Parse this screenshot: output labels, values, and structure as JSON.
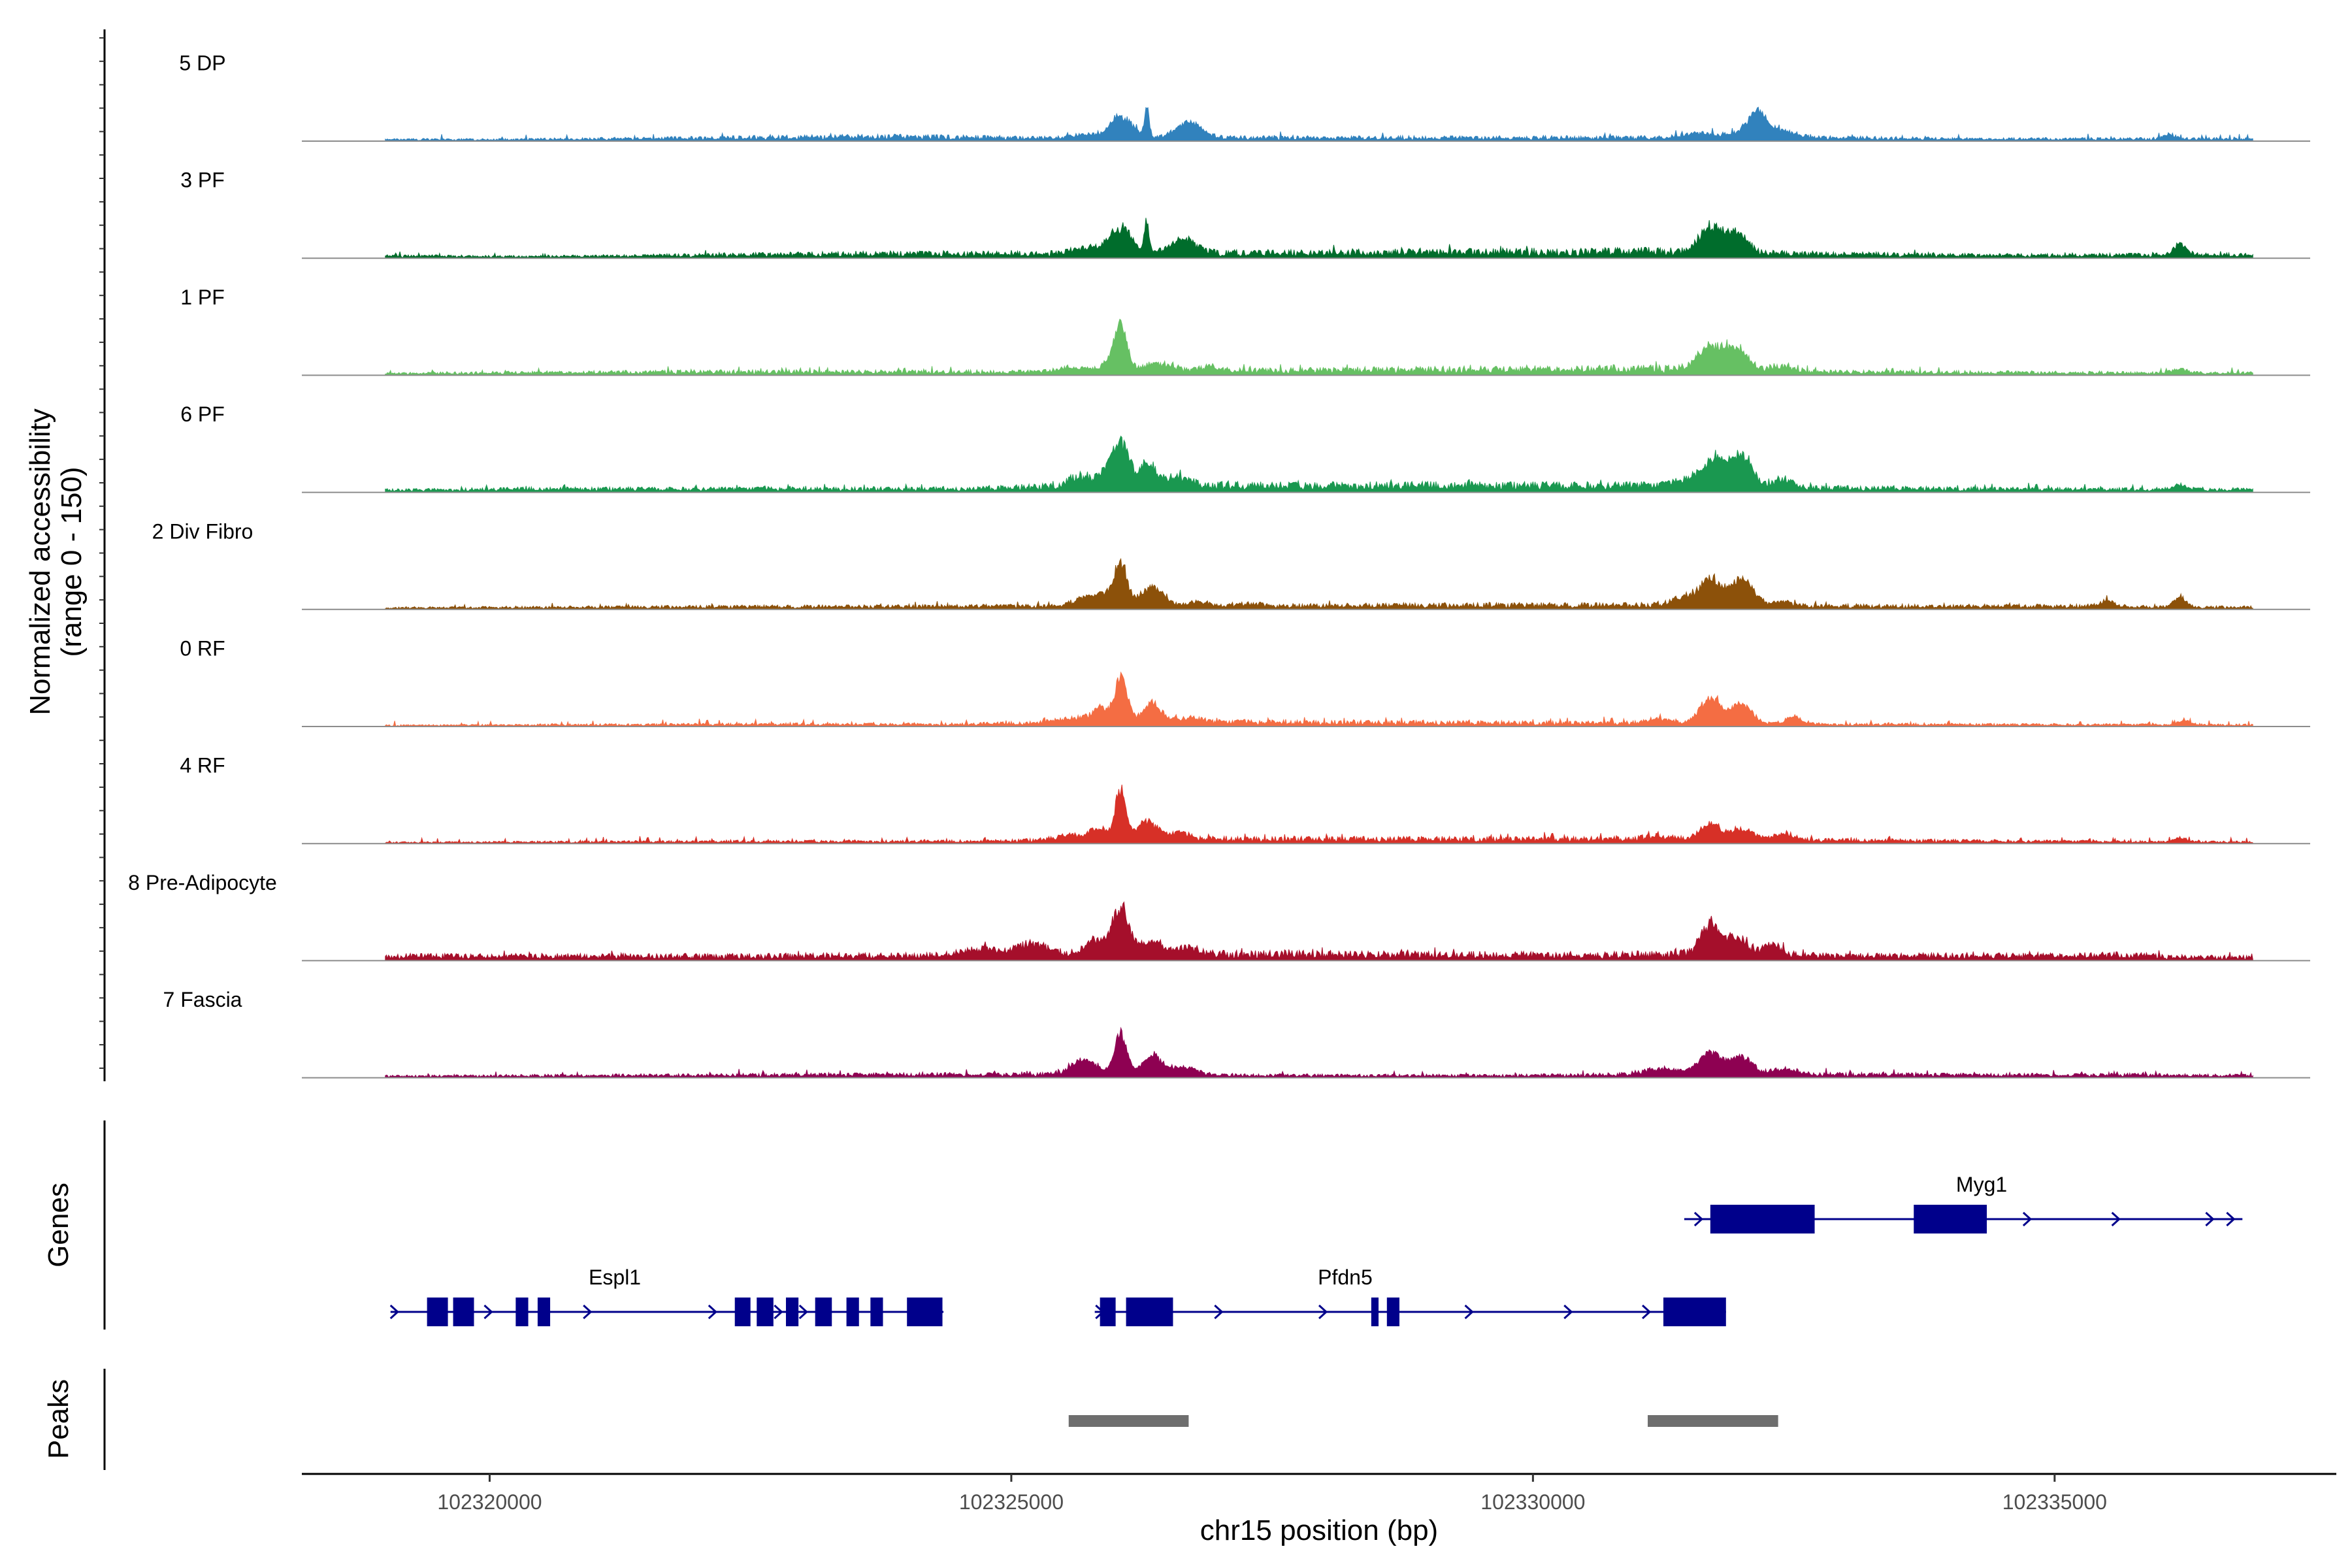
{
  "chart_data": {
    "type": "area",
    "title": "",
    "xlabel": "chr15 position (bp)",
    "ylabel": "Normalized accessibility",
    "ylabel_range": "(range 0 - 150)",
    "y_range": [
      0,
      150
    ],
    "x_range": [
      102318200,
      102337700
    ],
    "x_ticks": [
      102320000,
      102325000,
      102330000,
      102335000
    ],
    "x_tick_labels": [
      "102320000",
      "102325000",
      "102330000",
      "102335000"
    ],
    "peak_positions": [
      102326100,
      102326500,
      102331700,
      102332000
    ],
    "tracks": [
      {
        "name": "5 DP",
        "color": "#3182bd",
        "baseline": [
          [
            102319000,
            3
          ],
          [
            102320200,
            3
          ],
          [
            102323700,
            8
          ],
          [
            102325200,
            6
          ],
          [
            102331100,
            6
          ],
          [
            102332800,
            6
          ],
          [
            102334200,
            4
          ],
          [
            102336300,
            4
          ]
        ],
        "peaks": [
          [
            102325700,
            6,
            120
          ],
          [
            102326050,
            40,
            100
          ],
          [
            102326300,
            55,
            22
          ],
          [
            102326700,
            30,
            120
          ],
          [
            102331600,
            8,
            150
          ],
          [
            102331950,
            6,
            130
          ],
          [
            102332150,
            45,
            90
          ],
          [
            102332400,
            12,
            120
          ],
          [
            102336100,
            8,
            60
          ]
        ]
      },
      {
        "name": "3 PF",
        "color": "#006d2c",
        "baseline": [
          [
            102319000,
            4
          ],
          [
            102320400,
            3
          ],
          [
            102323700,
            8
          ],
          [
            102325200,
            8
          ],
          [
            102331100,
            12
          ],
          [
            102332700,
            8
          ],
          [
            102334300,
            5
          ],
          [
            102336200,
            6
          ]
        ],
        "peaks": [
          [
            102325700,
            10,
            130
          ],
          [
            102326050,
            45,
            110
          ],
          [
            102326300,
            58,
            20
          ],
          [
            102326650,
            26,
            120
          ],
          [
            102331700,
            45,
            110
          ],
          [
            102331950,
            35,
            100
          ],
          [
            102336200,
            20,
            60
          ]
        ]
      },
      {
        "name": "1 PF",
        "color": "#66c063",
        "baseline": [
          [
            102319000,
            3
          ],
          [
            102320500,
            5
          ],
          [
            102322000,
            6
          ],
          [
            102325300,
            6
          ],
          [
            102331000,
            12
          ],
          [
            102332900,
            6
          ],
          [
            102336100,
            4
          ]
        ],
        "peaks": [
          [
            102325600,
            8,
            160
          ],
          [
            102325950,
            15,
            80
          ],
          [
            102326050,
            78,
            60
          ],
          [
            102326400,
            15,
            130
          ],
          [
            102326900,
            8,
            100
          ],
          [
            102331700,
            40,
            120
          ],
          [
            102331950,
            38,
            110
          ],
          [
            102332400,
            8,
            100
          ],
          [
            102336200,
            7,
            70
          ]
        ]
      },
      {
        "name": "6 PF",
        "color": "#1a9850",
        "baseline": [
          [
            102319200,
            4
          ],
          [
            102320400,
            6
          ],
          [
            102322500,
            6
          ],
          [
            102324600,
            6
          ],
          [
            102325600,
            12
          ],
          [
            102331000,
            12
          ],
          [
            102332600,
            8
          ],
          [
            102334300,
            6
          ],
          [
            102336000,
            5
          ]
        ],
        "peaks": [
          [
            102325650,
            15,
            110
          ],
          [
            102325950,
            30,
            100
          ],
          [
            102326050,
            62,
            70
          ],
          [
            102326300,
            38,
            90
          ],
          [
            102326600,
            15,
            110
          ],
          [
            102331500,
            14,
            120
          ],
          [
            102331750,
            50,
            100
          ],
          [
            102332000,
            55,
            100
          ],
          [
            102332400,
            15,
            90
          ],
          [
            102336200,
            8,
            70
          ]
        ]
      },
      {
        "name": "2 Div Fibro",
        "color": "#8c510a",
        "baseline": [
          [
            102319200,
            3
          ],
          [
            102320800,
            4
          ],
          [
            102322800,
            5
          ],
          [
            102325800,
            6
          ],
          [
            102331100,
            8
          ],
          [
            102332800,
            6
          ],
          [
            102335300,
            6
          ],
          [
            102336100,
            4
          ]
        ],
        "peaks": [
          [
            102325700,
            15,
            110
          ],
          [
            102325900,
            20,
            90
          ],
          [
            102326050,
            72,
            60
          ],
          [
            102326350,
            35,
            110
          ],
          [
            102326800,
            8,
            90
          ],
          [
            102327300,
            5,
            80
          ],
          [
            102331450,
            14,
            110
          ],
          [
            102331700,
            45,
            100
          ],
          [
            102332000,
            48,
            110
          ],
          [
            102332400,
            6,
            90
          ],
          [
            102335500,
            10,
            70
          ],
          [
            102336200,
            16,
            60
          ]
        ]
      },
      {
        "name": "0 RF",
        "color": "#f46d43",
        "baseline": [
          [
            102319000,
            2
          ],
          [
            102320800,
            3
          ],
          [
            102322500,
            4
          ],
          [
            102324500,
            4
          ],
          [
            102325800,
            8
          ],
          [
            102331000,
            6
          ],
          [
            102332800,
            4
          ],
          [
            102336100,
            3
          ]
        ],
        "peaks": [
          [
            102325600,
            8,
            150
          ],
          [
            102325850,
            25,
            70
          ],
          [
            102326050,
            78,
            60
          ],
          [
            102326350,
            35,
            90
          ],
          [
            102326700,
            8,
            120
          ],
          [
            102331200,
            8,
            110
          ],
          [
            102331700,
            45,
            100
          ],
          [
            102332000,
            35,
            100
          ],
          [
            102332500,
            15,
            70
          ],
          [
            102336250,
            8,
            60
          ]
        ]
      },
      {
        "name": "4 RF",
        "color": "#d73027",
        "baseline": [
          [
            102319000,
            2
          ],
          [
            102320600,
            3
          ],
          [
            102323000,
            4
          ],
          [
            102324700,
            4
          ],
          [
            102325800,
            8
          ],
          [
            102331200,
            8
          ],
          [
            102332800,
            6
          ],
          [
            102335000,
            4
          ],
          [
            102336000,
            3
          ]
        ],
        "peaks": [
          [
            102325600,
            8,
            150
          ],
          [
            102325850,
            18,
            80
          ],
          [
            102326050,
            90,
            50
          ],
          [
            102326300,
            32,
            90
          ],
          [
            102326600,
            10,
            110
          ],
          [
            102331200,
            6,
            120
          ],
          [
            102331700,
            26,
            100
          ],
          [
            102332000,
            20,
            100
          ],
          [
            102332400,
            12,
            100
          ],
          [
            102336200,
            7,
            70
          ]
        ]
      },
      {
        "name": "8 Pre-Adipocyte",
        "color": "#a50f2b",
        "baseline": [
          [
            102319300,
            8
          ],
          [
            102320300,
            8
          ],
          [
            102322400,
            8
          ],
          [
            102324600,
            10
          ],
          [
            102325300,
            12
          ],
          [
            102330800,
            10
          ],
          [
            102331300,
            12
          ],
          [
            102332500,
            10
          ],
          [
            102333000,
            8
          ],
          [
            102335800,
            10
          ],
          [
            102336100,
            6
          ]
        ],
        "peaks": [
          [
            102324700,
            12,
            150
          ],
          [
            102325200,
            18,
            140
          ],
          [
            102325800,
            26,
            100
          ],
          [
            102326050,
            80,
            80
          ],
          [
            102326350,
            24,
            100
          ],
          [
            102326700,
            12,
            100
          ],
          [
            102331700,
            55,
            90
          ],
          [
            102331950,
            30,
            100
          ],
          [
            102332300,
            18,
            90
          ]
        ]
      },
      {
        "name": "7 Fascia",
        "color": "#8e0152",
        "baseline": [
          [
            102319300,
            3
          ],
          [
            102320600,
            4
          ],
          [
            102322700,
            5
          ],
          [
            102324800,
            6
          ],
          [
            102326900,
            5
          ],
          [
            102328300,
            4
          ],
          [
            102329800,
            4
          ],
          [
            102331000,
            6
          ],
          [
            102332900,
            6
          ],
          [
            102334300,
            5
          ],
          [
            102335800,
            5
          ],
          [
            102336600,
            4
          ]
        ],
        "peaks": [
          [
            102325700,
            28,
            120
          ],
          [
            102326050,
            72,
            60
          ],
          [
            102326350,
            32,
            100
          ],
          [
            102326650,
            14,
            120
          ],
          [
            102331250,
            10,
            180
          ],
          [
            102331700,
            40,
            110
          ],
          [
            102332000,
            32,
            100
          ],
          [
            102332400,
            10,
            120
          ]
        ]
      }
    ],
    "genes_panel": {
      "label": "Genes",
      "color": "#00008b",
      "genes": [
        {
          "name": "Espl1",
          "start": 102319050,
          "end": 102324350,
          "label_x": 102321200,
          "row": 1,
          "strand": "+",
          "exons": [
            [
              102319400,
              102319600
            ],
            [
              102319650,
              102319850
            ],
            [
              102320250,
              102320370
            ],
            [
              102320460,
              102320580
            ],
            [
              102322350,
              102322500
            ],
            [
              102322560,
              102322720
            ],
            [
              102322840,
              102322960
            ],
            [
              102323120,
              102323280
            ],
            [
              102323420,
              102323540
            ],
            [
              102323650,
              102323770
            ],
            [
              102324000,
              102324340
            ]
          ],
          "arrows": [
            102319100,
            102320000,
            102320950,
            102322150,
            102322780,
            102323020,
            102324250
          ]
        },
        {
          "name": "Pfdn5",
          "start": 102325800,
          "end": 102331850,
          "label_x": 102328200,
          "row": 1,
          "strand": "+",
          "exons": [
            [
              102325850,
              102326000
            ],
            [
              102326100,
              102326550
            ],
            [
              102328450,
              102328520
            ],
            [
              102328600,
              102328720
            ],
            [
              102331250,
              102331850
            ]
          ],
          "arrows": [
            102325860,
            102327000,
            102328000,
            102329400,
            102330350,
            102331100
          ]
        },
        {
          "name": "Myg1",
          "start": 102331450,
          "end": 102336800,
          "label_x": 102334300,
          "row": 0,
          "strand": "+",
          "exons": [
            [
              102331700,
              102332700
            ],
            [
              102333650,
              102334350
            ]
          ],
          "arrows": [
            102331600,
            102334750,
            102335600,
            102336500,
            102336700
          ]
        }
      ]
    },
    "peaks_panel": {
      "label": "Peaks",
      "color": "#6e6e6e",
      "regions": [
        [
          102325550,
          102326700
        ],
        [
          102331100,
          102332350
        ]
      ]
    }
  }
}
